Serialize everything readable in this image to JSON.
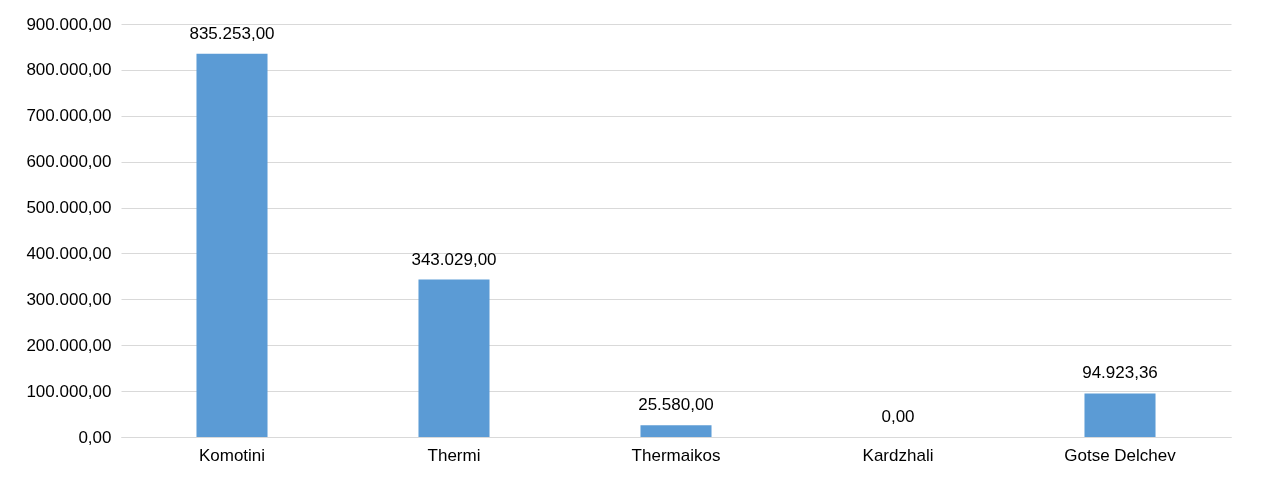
{
  "chart_data": {
    "type": "bar",
    "categories": [
      "Komotini",
      "Thermi",
      "Thermaikos",
      "Kardzhali",
      "Gotse Delchev"
    ],
    "values": [
      835253,
      343029,
      25580,
      0,
      94923.36
    ],
    "value_labels": [
      "835.253,00",
      "343.029,00",
      "25.580,00",
      "0,00",
      "94.923,36"
    ],
    "color": "#5b9bd5",
    "ylim": [
      0,
      900000
    ],
    "yticks": [
      {
        "value": 0,
        "label": "0,00"
      },
      {
        "value": 100000,
        "label": "100.000,00"
      },
      {
        "value": 200000,
        "label": "200.000,00"
      },
      {
        "value": 300000,
        "label": "300.000,00"
      },
      {
        "value": 400000,
        "label": "400.000,00"
      },
      {
        "value": 500000,
        "label": "500.000,00"
      },
      {
        "value": 600000,
        "label": "600.000,00"
      },
      {
        "value": 700000,
        "label": "700.000,00"
      },
      {
        "value": 800000,
        "label": "800.000,00"
      },
      {
        "value": 900000,
        "label": "900.000,00"
      }
    ],
    "grid": "y"
  }
}
